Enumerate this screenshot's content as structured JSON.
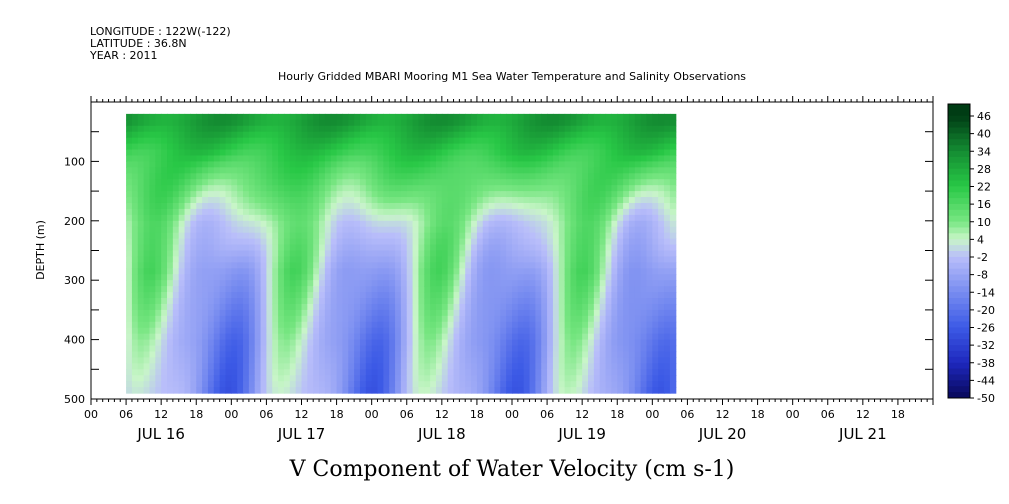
{
  "header": {
    "longitude": "LONGITUDE : 122W(-122)",
    "latitude": "LATITUDE : 36.8N",
    "year": "YEAR : 2011",
    "subtitle": "Hourly Gridded MBARI Mooring M1 Sea Water Temperature and Salinity Observations"
  },
  "chart_data": {
    "type": "heatmap",
    "title": "V Component of Water Velocity (cm s-1)",
    "xlabel": "",
    "ylabel": "DEPTH (m)",
    "x_range_hours": [
      0,
      144
    ],
    "x_days": [
      "JUL 16",
      "JUL 17",
      "JUL 18",
      "JUL 19",
      "JUL 20",
      "JUL 21"
    ],
    "x_hour_ticks": [
      "00",
      "06",
      "12",
      "18"
    ],
    "ylim": [
      0,
      500
    ],
    "y_inverted": true,
    "y_ticks": [
      100,
      200,
      300,
      400,
      500
    ],
    "data_extent": {
      "hours_start": 6,
      "hours_end": 100,
      "depth_top": 20,
      "depth_bottom": 490
    },
    "colorbar": {
      "levels": [
        "46",
        "40",
        "34",
        "28",
        "22",
        "16",
        "10",
        "4",
        "-2",
        "-8",
        "-14",
        "-20",
        "-26",
        "-32",
        "-38",
        "-44",
        "-50"
      ],
      "min": -50,
      "max": 50
    },
    "description_depth_profiles": [
      {
        "depth": 30,
        "value": 30
      },
      {
        "depth": 100,
        "value": 18
      },
      {
        "depth": 200,
        "value": 4
      },
      {
        "depth": 300,
        "value": -2
      },
      {
        "depth": 400,
        "value": -8
      },
      {
        "depth": 490,
        "value": -10
      }
    ]
  }
}
